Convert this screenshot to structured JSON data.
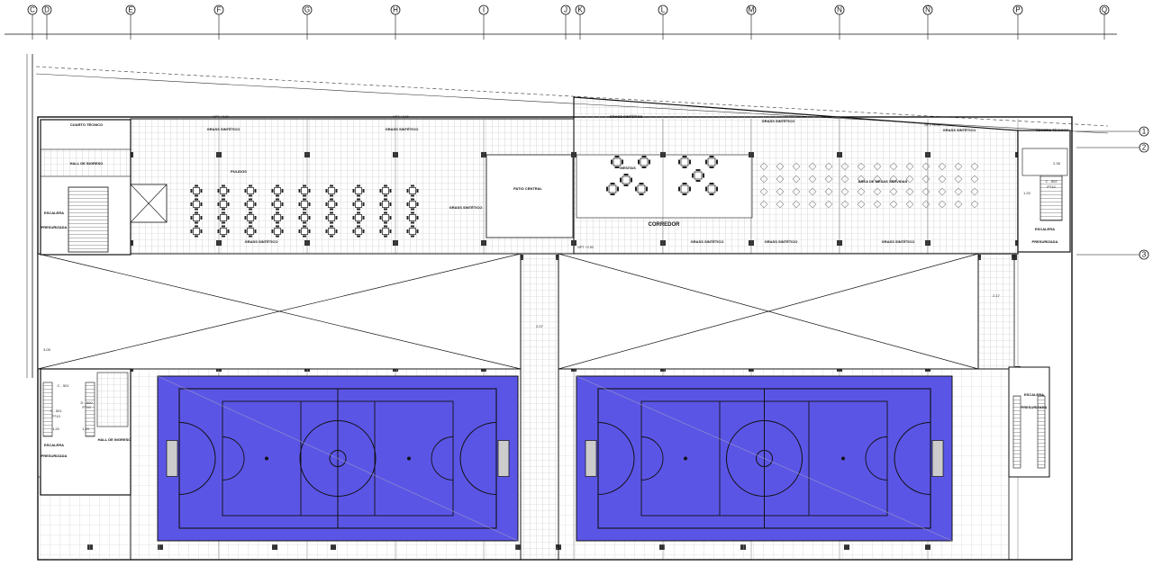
{
  "axes_top": [
    "C",
    "D",
    "E",
    "F",
    "G",
    "H",
    "I",
    "J",
    "K",
    "L",
    "M",
    "N",
    "Ñ",
    "P",
    "Q"
  ],
  "axes_right": [
    "1",
    "2",
    "3"
  ],
  "colors": {
    "court": "#5b55e6",
    "line": "#111111",
    "grid": "#c8c8c8"
  },
  "labels": {
    "grass_1": "GRASS SINTÉTICO",
    "grass_2": "GRASS SINTÉTICO",
    "grass_3": "GRASS SINTÉTICO",
    "grass_4": "GRASS SINTÉTICO",
    "grass_5": "GRASS SINTÉTICO",
    "grass_6": "GRASS SINTÉTICO",
    "grass_7": "GRASS SINTÉTICO",
    "grass_8": "GRASS SINTÉTICO",
    "grass_9": "GRASS SINTÉTICO",
    "grass_10": "GRASS SINTÉTICO",
    "patio": "PATIO CENTRAL",
    "pulidos": "PULIDOS",
    "mesitas": "MESITAS",
    "corredor": "CORREDOR",
    "area_mesas": "ÁREA DE MESAS SERVIDAS",
    "hall_ingreso_1": "HALL DE INGRESO",
    "hall_ingreso_2": "HALL DE INGRESO",
    "escalera_1": "ESCALERA",
    "escalera_2": "ESCALERA",
    "escalera_3": "ESCALERA",
    "escalera_4": "ESCALERA",
    "presurizada_1": "PRESURIZADA",
    "presurizada_2": "PRESURIZADA",
    "presurizada_3": "PRESURIZADA",
    "presurizada_4": "PRESURIZADA",
    "cuarto_tecnico_1": "CUARTO TÉCNICO",
    "cuarto_tecnico_2": "CUARTO TÉCNICO",
    "dim_305": "3.05",
    "dim_207": "2.07",
    "dim_217": "2.17",
    "dim_120a": "1.20",
    "dim_120b": "1.20",
    "dim_120c": "1.20",
    "dim_235": "2.35",
    "door_c501a": "C - 501",
    "door_c501b": "C - 501",
    "door_c502": "C - 502",
    "door_d500": "D - 500",
    "door_p710a": "P710",
    "door_p710b": "P710",
    "door_p712": "P712",
    "npt_1": "NPT. +2.90",
    "npt_2": "NPT. +2.90",
    "npt_3": "NPT. +2.90",
    "npt_4": "NPT. +2.90"
  }
}
